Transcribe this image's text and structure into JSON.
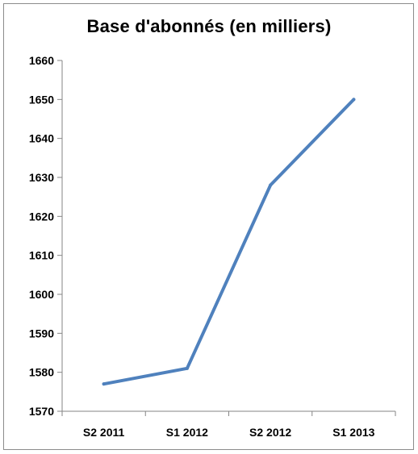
{
  "chart_data": {
    "type": "line",
    "title": "Base d'abonnés (en milliers)",
    "xlabel": "",
    "ylabel": "",
    "categories": [
      "S2 2011",
      "S1 2012",
      "S2 2012",
      "S1 2013"
    ],
    "series": [
      {
        "values": [
          1577,
          1581,
          1628,
          1650
        ],
        "color": "#4f81bd"
      }
    ],
    "ylim": [
      1570,
      1660
    ],
    "yticks": [
      1570,
      1580,
      1590,
      1600,
      1610,
      1620,
      1630,
      1640,
      1650,
      1660
    ],
    "grid": false,
    "legend": "none"
  }
}
